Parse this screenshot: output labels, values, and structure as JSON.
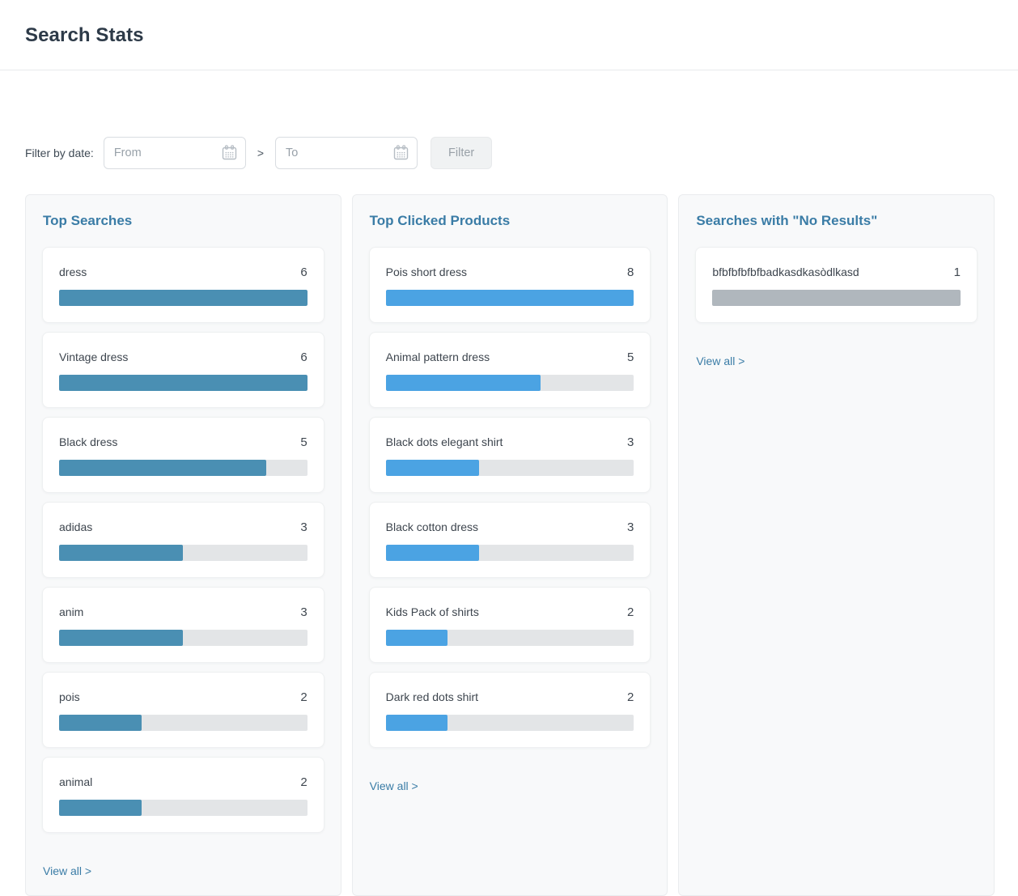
{
  "header": {
    "title": "Search Stats"
  },
  "filter": {
    "label": "Filter by date:",
    "from_placeholder": "From",
    "to_placeholder": "To",
    "separator": ">",
    "button_label": "Filter"
  },
  "panels": [
    {
      "id": "top-searches",
      "title": "Top Searches",
      "bar_color": "#4a8fb3",
      "max_count": 6,
      "view_all": "View all >",
      "items": [
        {
          "label": "dress",
          "count": 6
        },
        {
          "label": "Vintage dress",
          "count": 6
        },
        {
          "label": "Black dress",
          "count": 5
        },
        {
          "label": "adidas",
          "count": 3
        },
        {
          "label": "anim",
          "count": 3
        },
        {
          "label": "pois",
          "count": 2
        },
        {
          "label": "animal",
          "count": 2
        }
      ]
    },
    {
      "id": "top-clicked-products",
      "title": "Top Clicked Products",
      "bar_color": "#4ba3e3",
      "max_count": 8,
      "view_all": "View all >",
      "items": [
        {
          "label": "Pois short dress",
          "count": 8
        },
        {
          "label": "Animal pattern dress",
          "count": 5
        },
        {
          "label": "Black dots elegant shirt",
          "count": 3
        },
        {
          "label": "Black cotton dress",
          "count": 3
        },
        {
          "label": "Kids Pack of shirts",
          "count": 2
        },
        {
          "label": "Dark red dots shirt",
          "count": 2
        }
      ]
    },
    {
      "id": "searches-no-results",
      "title": "Searches with \"No Results\"",
      "bar_color": "#b0b7bd",
      "max_count": 1,
      "view_all": "View all >",
      "items": [
        {
          "label": "bfbfbfbfbfbadkasdkasòdlkasd",
          "count": 1
        }
      ]
    }
  ],
  "icons": {
    "calendar": "calendar-icon"
  },
  "colors": {
    "accent_link": "#3a7ca6",
    "panel_title": "#3a7ca6",
    "bar_track": "#e3e5e7",
    "top_searches_bar": "#4a8fb3",
    "top_clicked_bar": "#4ba3e3",
    "no_results_bar": "#b0b7bd"
  }
}
